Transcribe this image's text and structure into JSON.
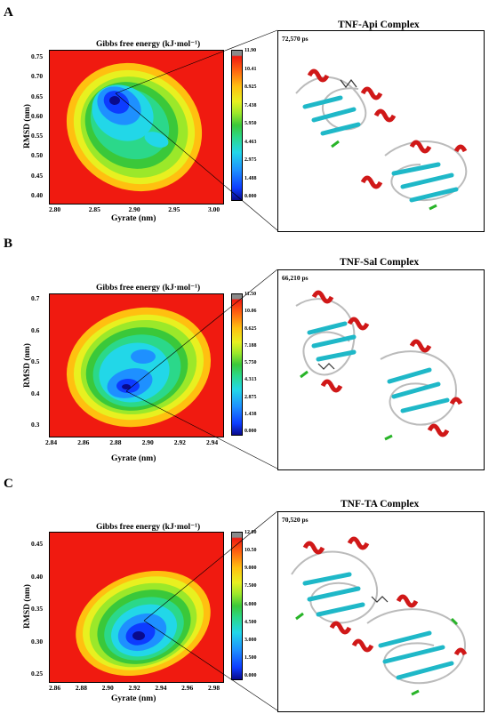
{
  "panels": [
    {
      "letter": "A",
      "fel_title": "Gibbs free energy (kJ·mol⁻¹)",
      "complex_title": "TNF-Api Complex",
      "time_label": "72,570 ps",
      "xlabel": "Gyrate (nm)",
      "ylabel": "RMSD (nm)",
      "xticks": [
        "2.80",
        "2.85",
        "2.90",
        "2.95",
        "3.00"
      ],
      "yticks": [
        "0.75",
        "0.70",
        "0.65",
        "0.60",
        "0.55",
        "0.50",
        "0.45",
        "0.40"
      ],
      "cbar_ticks": [
        "11.90",
        "10.41",
        "8.925",
        "7.438",
        "5.950",
        "4.463",
        "2.975",
        "1.488",
        "0.000"
      ]
    },
    {
      "letter": "B",
      "fel_title": "Gibbs free energy (kJ·mol⁻¹)",
      "complex_title": "TNF-Sal Complex",
      "time_label": "66,210 ps",
      "xlabel": "Gyrate (nm)",
      "ylabel": "RMSD (nm)",
      "xticks": [
        "2.84",
        "2.86",
        "2.88",
        "2.90",
        "2.92",
        "2.94"
      ],
      "yticks": [
        "0.7",
        "0.6",
        "0.5",
        "0.4",
        "0.3"
      ],
      "cbar_ticks": [
        "11.50",
        "10.06",
        "8.625",
        "7.188",
        "5.750",
        "4.313",
        "2.875",
        "1.438",
        "0.000"
      ]
    },
    {
      "letter": "C",
      "fel_title": "Gibbs free energy (kJ·mol⁻¹)",
      "complex_title": "TNF-TA Complex",
      "time_label": "70,520 ps",
      "xlabel": "Gyrate (nm)",
      "ylabel": "RMSD (nm)",
      "xticks": [
        "2.86",
        "2.88",
        "2.90",
        "2.92",
        "2.94",
        "2.96",
        "2.98"
      ],
      "yticks": [
        "0.45",
        "0.40",
        "0.35",
        "0.30",
        "0.25"
      ],
      "cbar_ticks": [
        "12.00",
        "10.50",
        "9.000",
        "7.500",
        "6.000",
        "4.500",
        "3.000",
        "1.500",
        "0.000"
      ]
    }
  ],
  "chart_data": [
    {
      "type": "heatmap",
      "title": "Gibbs free energy (kJ·mol⁻¹)",
      "xlabel": "Gyrate (nm)",
      "ylabel": "RMSD (nm)",
      "xlim": [
        2.79,
        3.01
      ],
      "ylim": [
        0.38,
        0.78
      ],
      "colorbar_range": [
        0.0,
        11.9
      ],
      "minimum": {
        "x": 2.87,
        "y": 0.63,
        "value": 0.0
      }
    },
    {
      "type": "heatmap",
      "title": "Gibbs free energy (kJ·mol⁻¹)",
      "xlabel": "Gyrate (nm)",
      "ylabel": "RMSD (nm)",
      "xlim": [
        2.835,
        2.95
      ],
      "ylim": [
        0.27,
        0.71
      ],
      "colorbar_range": [
        0.0,
        11.5
      ],
      "minimum": {
        "x": 2.89,
        "y": 0.42,
        "value": 0.0
      }
    },
    {
      "type": "heatmap",
      "title": "Gibbs free energy (kJ·mol⁻¹)",
      "xlabel": "Gyrate (nm)",
      "ylabel": "RMSD (nm)",
      "xlim": [
        2.85,
        2.99
      ],
      "ylim": [
        0.22,
        0.47
      ],
      "colorbar_range": [
        0.0,
        12.0
      ],
      "minimum": {
        "x": 2.925,
        "y": 0.3,
        "value": 0.0
      }
    }
  ]
}
